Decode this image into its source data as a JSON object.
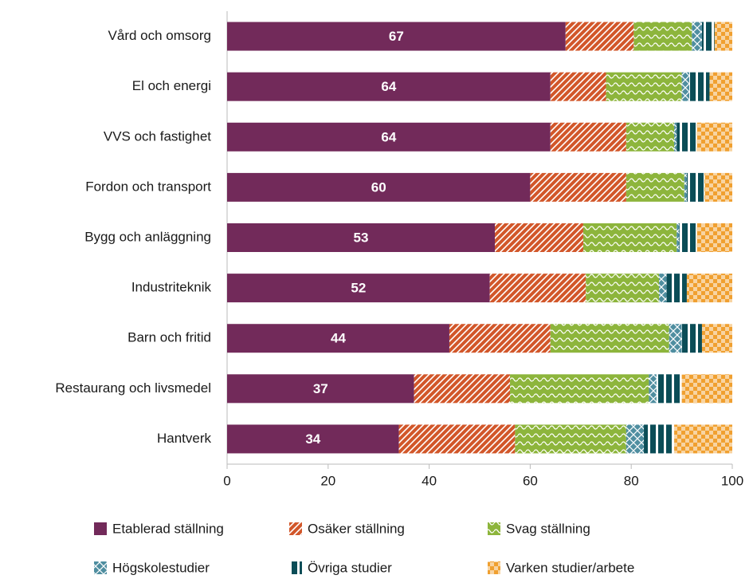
{
  "chart_data": {
    "type": "stacked-barh",
    "categories": [
      "Vård och omsorg",
      "El och energi",
      "VVS och fastighet",
      "Fordon och transport",
      "Bygg och anläggning",
      "Industriteknik",
      "Barn och fritid",
      "Restaurang och livsmedel",
      "Hantverk"
    ],
    "series": [
      {
        "name": "Etablerad ställning",
        "color": "#722a5a",
        "values": [
          67,
          64,
          64,
          60,
          53,
          52,
          44,
          37,
          34
        ]
      },
      {
        "name": "Osäker ställning",
        "color": "#d2572a",
        "values": [
          13.5,
          11,
          15,
          19,
          17.5,
          19,
          20,
          19,
          23
        ]
      },
      {
        "name": "Svag ställning",
        "color": "#8db53c",
        "values": [
          11.5,
          15,
          9.5,
          11.5,
          18.5,
          14.5,
          23.5,
          27.5,
          22
        ]
      },
      {
        "name": "Högskolestudier",
        "color": "#4f8ea0",
        "values": [
          2,
          1.5,
          0.5,
          0.5,
          0.5,
          1.5,
          2.5,
          1.5,
          3.5
        ]
      },
      {
        "name": "Övriga studier",
        "color": "#0b4d57",
        "values": [
          2.5,
          4,
          4,
          3.5,
          3.5,
          4,
          4,
          5,
          6
        ]
      },
      {
        "name": "Varken studier/arbete",
        "color": "#f0a030",
        "values": [
          3.5,
          4.5,
          7,
          5.5,
          7,
          9,
          6,
          10,
          11.5
        ]
      }
    ],
    "labeled_series": 0,
    "xlim": [
      0,
      100
    ],
    "xticks": [
      0,
      20,
      40,
      60,
      80,
      100
    ]
  }
}
